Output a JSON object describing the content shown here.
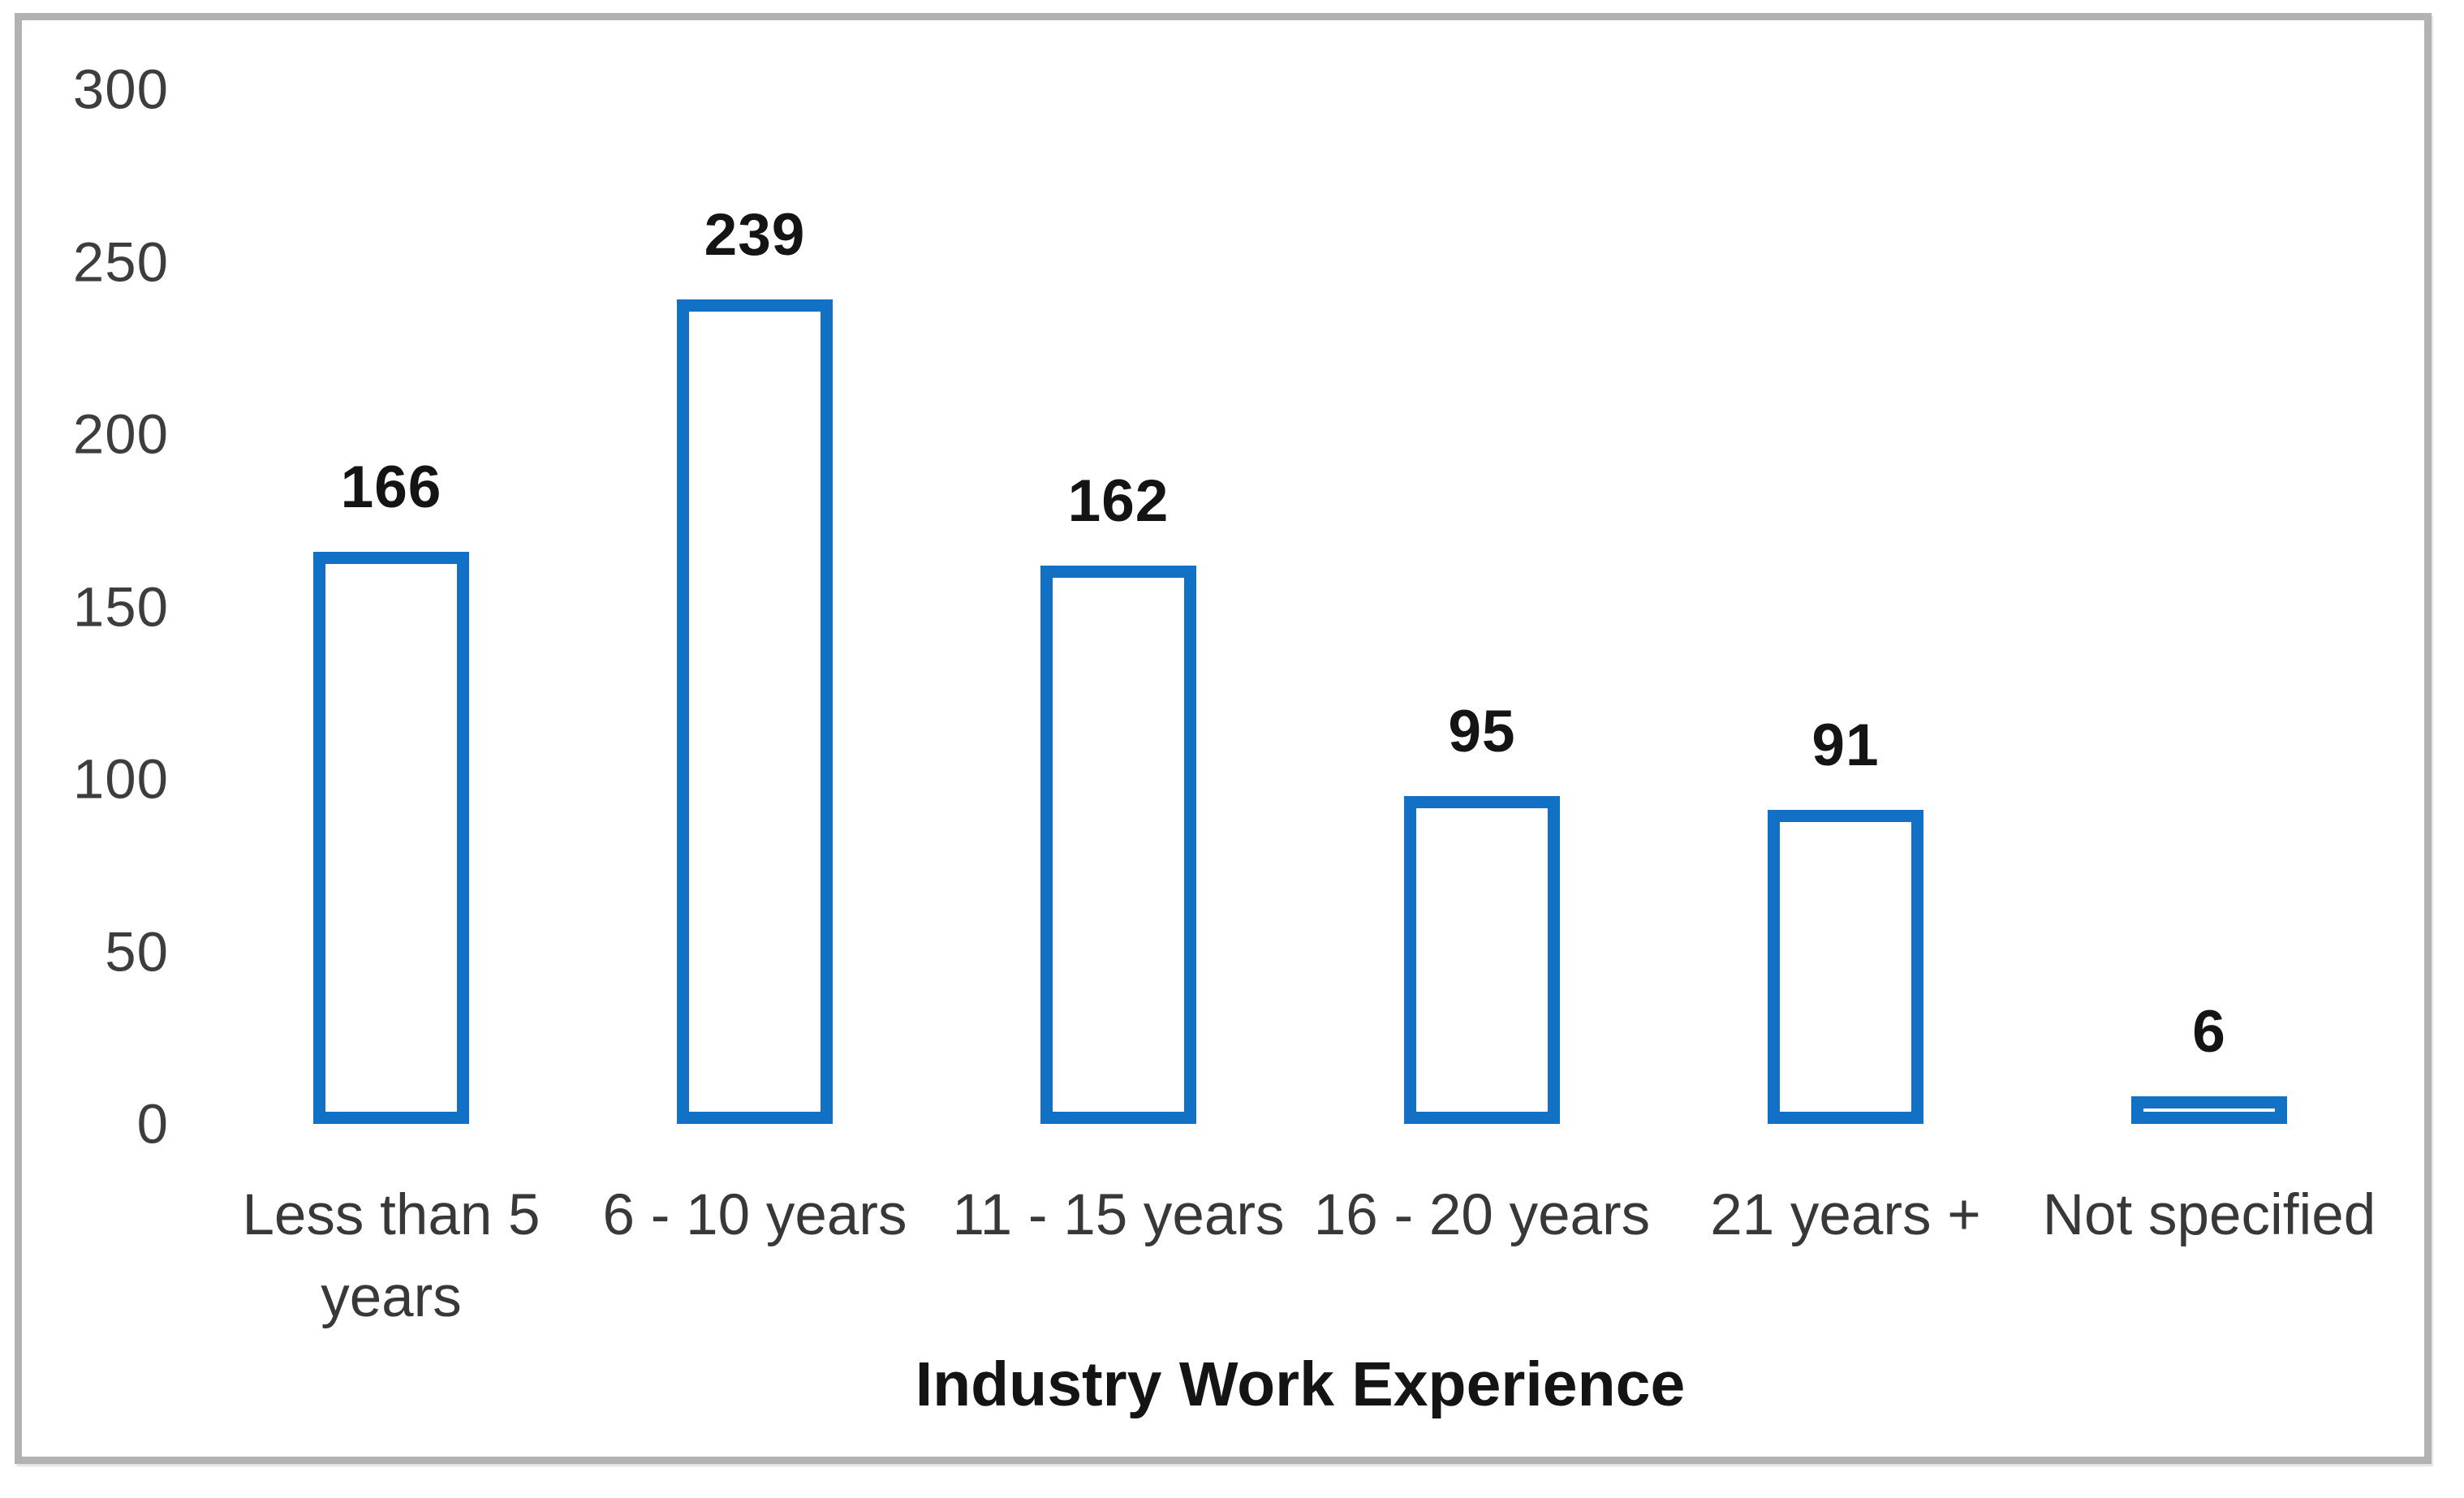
{
  "chart_data": {
    "type": "bar",
    "categories": [
      "Less than 5 years",
      "6 - 10 years",
      "11 - 15 years",
      "16 - 20 years",
      "21 years +",
      "Not specified"
    ],
    "values": [
      166,
      239,
      162,
      95,
      91,
      6
    ],
    "value_labels": [
      "166",
      "239",
      "162",
      "95",
      "91",
      "6"
    ],
    "title": "",
    "xlabel": "Industry Work Experience",
    "ylabel": "",
    "ylim": [
      0,
      300
    ],
    "yticks": [
      0,
      50,
      100,
      150,
      200,
      250,
      300
    ],
    "ytick_labels": [
      "0",
      "50",
      "100",
      "150",
      "200",
      "250",
      "300"
    ],
    "grid": false,
    "legend": null,
    "bar_fill_color": "#ffffff",
    "bar_border_color": "#1271c5",
    "frame_border_color": "#b2b2b2",
    "text_color": "#3d3d3d",
    "data_label_color": "#141414"
  }
}
